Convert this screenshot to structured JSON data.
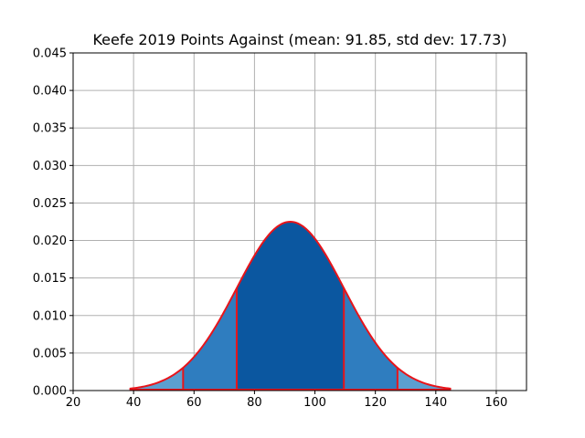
{
  "chart_data": {
    "type": "area",
    "title": "Keefe 2019 Points Against (mean: 91.85, std dev: 17.73)",
    "xlabel": "",
    "ylabel": "",
    "xlim": [
      20,
      170
    ],
    "ylim": [
      0,
      0.045
    ],
    "x_ticks": [
      20,
      40,
      60,
      80,
      100,
      120,
      140,
      160
    ],
    "y_ticks": [
      "0.000",
      "0.005",
      "0.010",
      "0.015",
      "0.020",
      "0.025",
      "0.030",
      "0.035",
      "0.040",
      "0.045"
    ],
    "grid": true,
    "distribution": {
      "kind": "normal",
      "mean": 91.85,
      "std_dev": 17.73,
      "x_range": [
        38.66,
        145.04
      ]
    },
    "bands": [
      {
        "from": 38.66,
        "to": 56.39,
        "color": "#5b9fd0"
      },
      {
        "from": 56.39,
        "to": 74.12,
        "color": "#2f7dbf"
      },
      {
        "from": 74.12,
        "to": 109.58,
        "color": "#0b57a0"
      },
      {
        "from": 109.58,
        "to": 127.31,
        "color": "#2f7dbf"
      },
      {
        "from": 127.31,
        "to": 145.04,
        "color": "#5b9fd0"
      }
    ],
    "band_boundaries": [
      56.39,
      74.12,
      109.58,
      127.31
    ],
    "curve_color": "#e8141a",
    "grid_color": "#b0b0b0"
  }
}
